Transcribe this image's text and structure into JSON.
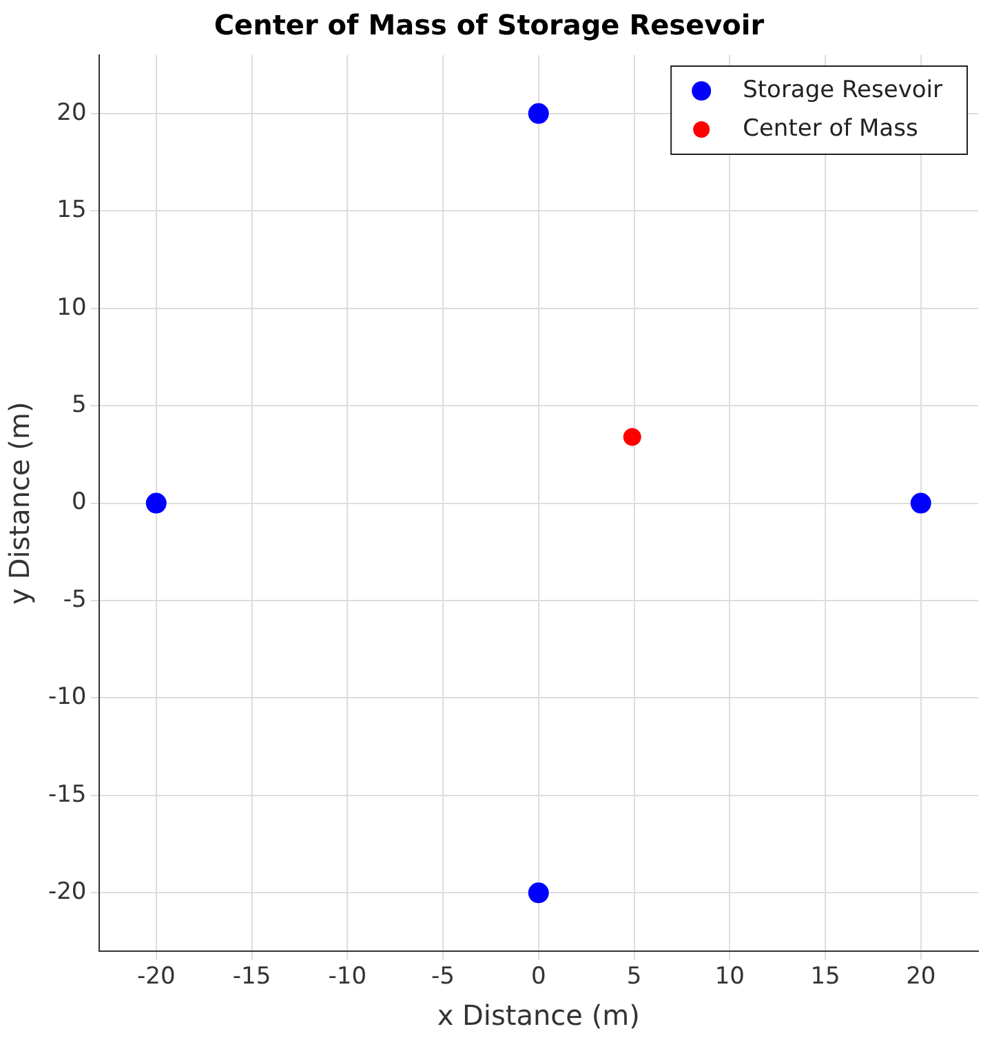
{
  "chart_data": {
    "type": "scatter",
    "title": "Center of Mass of Storage Resevoir",
    "xlabel": "x Distance (m)",
    "ylabel": "y Distance (m)",
    "series": [
      {
        "name": "Storage Resevoir",
        "color": "#0000ff",
        "x": [
          -20,
          0,
          20,
          0
        ],
        "values": [
          0,
          20,
          0,
          -20
        ]
      },
      {
        "name": "Center of Mass",
        "color": "#ff0000",
        "x": [
          4.9
        ],
        "values": [
          3.4
        ]
      }
    ],
    "xlim": [
      -23,
      23
    ],
    "ylim": [
      -23,
      23
    ],
    "xticks": [
      -20,
      -15,
      -10,
      -5,
      0,
      5,
      10,
      15,
      20
    ],
    "yticks": [
      -20,
      -15,
      -10,
      -5,
      0,
      5,
      10,
      15,
      20
    ],
    "grid": true,
    "legend": "top right",
    "marker": "circle"
  }
}
